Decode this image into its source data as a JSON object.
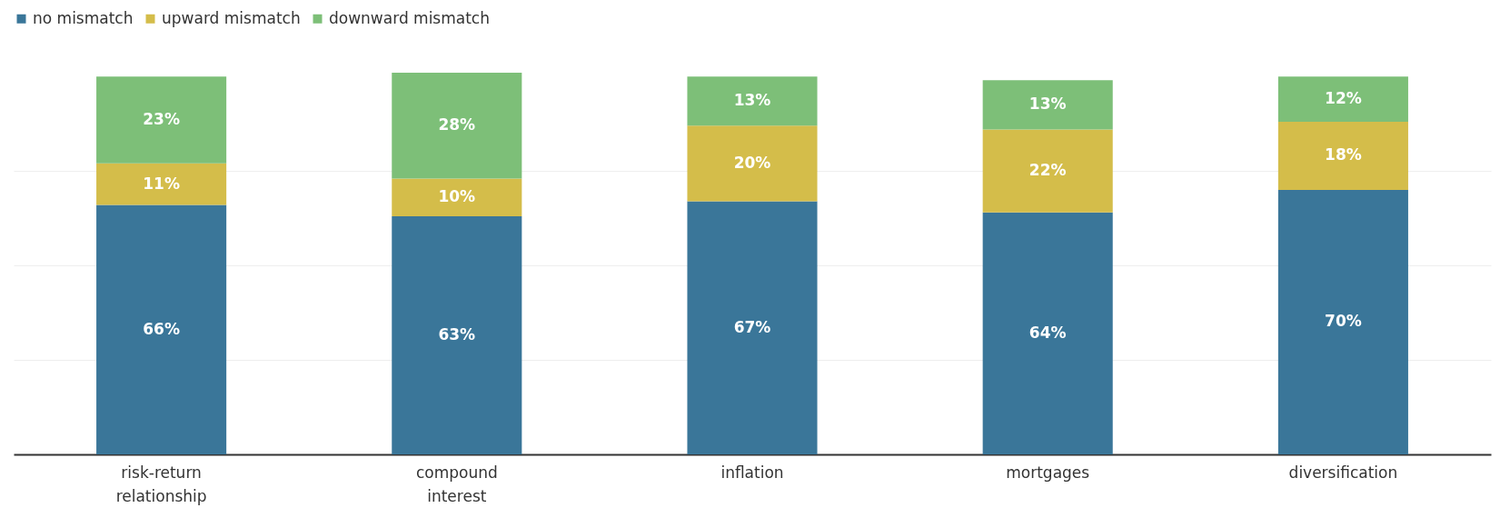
{
  "chart_data": {
    "type": "bar",
    "stacked": true,
    "categories": [
      "risk-return relationship",
      "compound interest",
      "inflation",
      "mortgages",
      "diversification"
    ],
    "series": [
      {
        "name": "no mismatch",
        "color": "#3a7699",
        "values": [
          66,
          63,
          67,
          64,
          70
        ],
        "value_labels": [
          "66%",
          "63%",
          "67%",
          "64%",
          "70%"
        ]
      },
      {
        "name": "upward mismatch",
        "color": "#d4bd4a",
        "values": [
          11,
          10,
          20,
          22,
          18
        ],
        "value_labels": [
          "11%",
          "10%",
          "20%",
          "22%",
          "18%"
        ]
      },
      {
        "name": "downward mismatch",
        "color": "#7dbf78",
        "values": [
          23,
          28,
          13,
          13,
          12
        ],
        "value_labels": [
          "23%",
          "28%",
          "13%",
          "13%",
          "12%"
        ]
      }
    ],
    "ylim": [
      0,
      101
    ],
    "yticks": [
      {
        "value": 25,
        "label": null
      },
      {
        "value": 50,
        "label": null
      },
      {
        "value": 75,
        "label": null
      }
    ],
    "grid": "y",
    "tick_labels": "x",
    "legend": "top left"
  }
}
